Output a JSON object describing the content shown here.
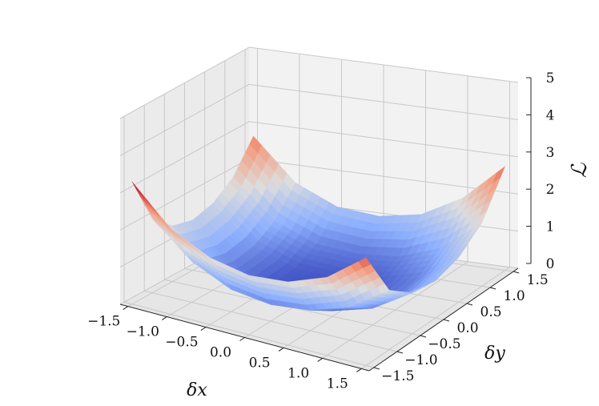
{
  "chart_data": {
    "type": "surface",
    "x_values": [
      -1.5,
      -1.0,
      -0.5,
      0.0,
      0.5,
      1.0,
      1.5
    ],
    "y_values": [
      -1.5,
      -1.0,
      -0.5,
      0.0,
      0.5,
      1.0,
      1.5
    ],
    "xlim": [
      -1.6,
      1.6
    ],
    "ylim": [
      -1.6,
      1.6
    ],
    "zlim": [
      0,
      5
    ],
    "x_ticks": [
      "−1.5",
      "−1.0",
      "−0.5",
      "0.0",
      "0.5",
      "1.0",
      "1.5"
    ],
    "y_ticks": [
      "−1.5",
      "−1.0",
      "−0.5",
      "0.0",
      "0.5",
      "1.0",
      "1.5"
    ],
    "z_ticks": [
      "0",
      "1",
      "2",
      "3",
      "4",
      "5"
    ],
    "z_surface": [
      [
        3.3,
        2.3,
        1.8,
        1.6,
        1.7,
        2.1,
        2.9
      ],
      [
        2.0,
        1.1,
        0.6,
        0.45,
        0.55,
        0.9,
        1.6
      ],
      [
        1.5,
        0.6,
        0.2,
        0.1,
        0.15,
        0.45,
        1.1
      ],
      [
        1.35,
        0.45,
        0.1,
        0.0,
        0.08,
        0.35,
        1.0
      ],
      [
        1.5,
        0.55,
        0.15,
        0.08,
        0.15,
        0.45,
        1.2
      ],
      [
        1.9,
        0.9,
        0.45,
        0.35,
        0.45,
        0.85,
        1.7
      ],
      [
        2.7,
        1.6,
        1.1,
        1.0,
        1.2,
        1.8,
        2.8
      ]
    ],
    "colormap": "coolwarm",
    "colormap_stops": [
      "#3b4cc0",
      "#8db0fe",
      "#dddddd",
      "#f49a7b",
      "#b40426"
    ],
    "xlabel": "δx",
    "ylabel": "δy",
    "zlabel": "ℒ",
    "grid": true,
    "pane_color": "#f2f2f2",
    "grid_color": "#c8c8c8"
  }
}
